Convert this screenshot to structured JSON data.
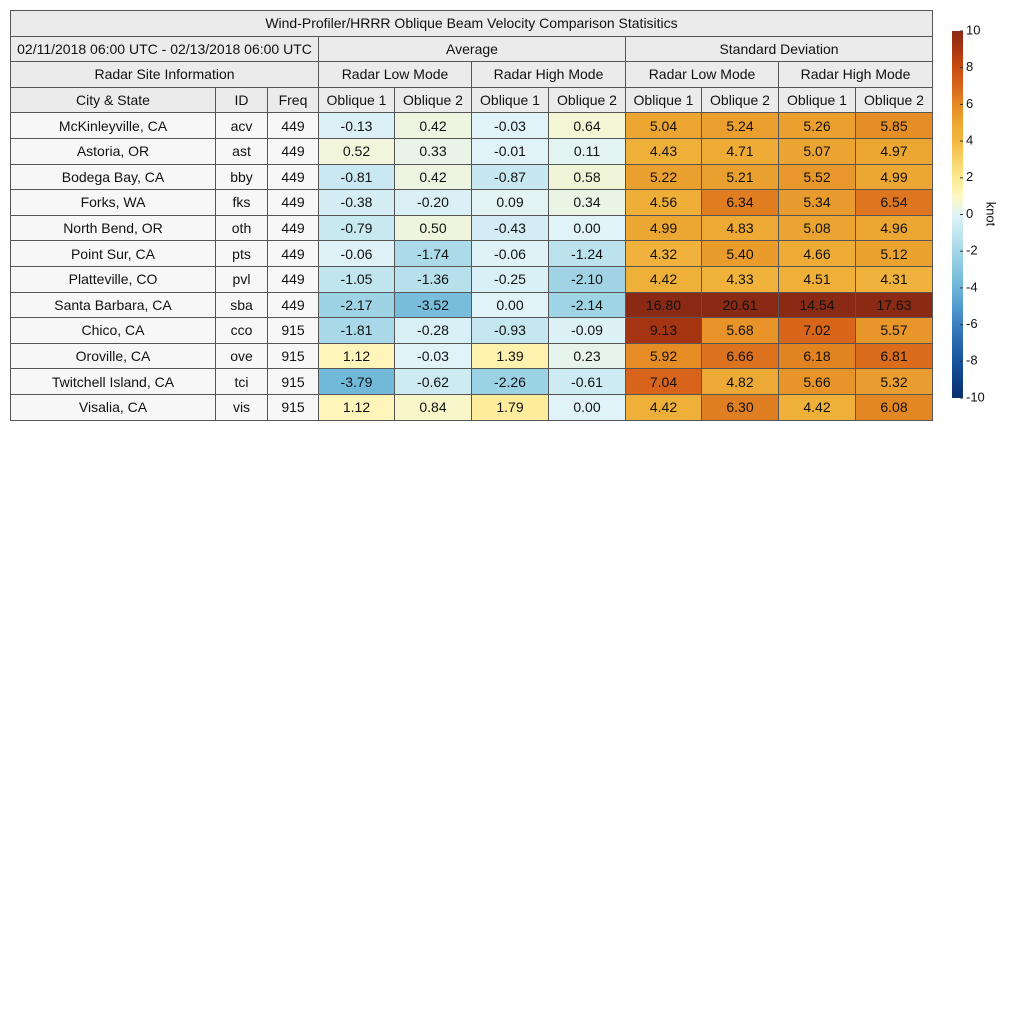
{
  "table": {
    "title": "Wind-Profiler/HRRR Oblique Beam Velocity Comparison Statisitics",
    "period": "02/11/2018 06:00 UTC - 02/13/2018 06:00 UTC",
    "groups": [
      "Average",
      "Standard Deviation"
    ],
    "site_info": "Radar Site Information",
    "modes": [
      "Radar Low Mode",
      "Radar High Mode",
      "Radar Low Mode",
      "Radar High Mode"
    ],
    "columns": [
      "City & State",
      "ID",
      "Freq",
      "Oblique 1",
      "Oblique 2",
      "Oblique 1",
      "Oblique 2",
      "Oblique 1",
      "Oblique 2",
      "Oblique 1",
      "Oblique 2"
    ],
    "rows": [
      [
        "McKinleyville, CA",
        "acv",
        "449",
        "-0.13",
        "0.42",
        "-0.03",
        "0.64",
        "5.04",
        "5.24",
        "5.26",
        "5.85"
      ],
      [
        "Astoria, OR",
        "ast",
        "449",
        "0.52",
        "0.33",
        "-0.01",
        "0.11",
        "4.43",
        "4.71",
        "5.07",
        "4.97"
      ],
      [
        "Bodega Bay, CA",
        "bby",
        "449",
        "-0.81",
        "0.42",
        "-0.87",
        "0.58",
        "5.22",
        "5.21",
        "5.52",
        "4.99"
      ],
      [
        "Forks, WA",
        "fks",
        "449",
        "-0.38",
        "-0.20",
        "0.09",
        "0.34",
        "4.56",
        "6.34",
        "5.34",
        "6.54"
      ],
      [
        "North Bend, OR",
        "oth",
        "449",
        "-0.79",
        "0.50",
        "-0.43",
        "0.00",
        "4.99",
        "4.83",
        "5.08",
        "4.96"
      ],
      [
        "Point Sur, CA",
        "pts",
        "449",
        "-0.06",
        "-1.74",
        "-0.06",
        "-1.24",
        "4.32",
        "5.40",
        "4.66",
        "5.12"
      ],
      [
        "Platteville, CO",
        "pvl",
        "449",
        "-1.05",
        "-1.36",
        "-0.25",
        "-2.10",
        "4.42",
        "4.33",
        "4.51",
        "4.31"
      ],
      [
        "Santa Barbara, CA",
        "sba",
        "449",
        "-2.17",
        "-3.52",
        "0.00",
        "-2.14",
        "16.80",
        "20.61",
        "14.54",
        "17.63"
      ],
      [
        "Chico, CA",
        "cco",
        "915",
        "-1.81",
        "-0.28",
        "-0.93",
        "-0.09",
        "9.13",
        "5.68",
        "7.02",
        "5.57"
      ],
      [
        "Oroville, CA",
        "ove",
        "915",
        "1.12",
        "-0.03",
        "1.39",
        "0.23",
        "5.92",
        "6.66",
        "6.18",
        "6.81"
      ],
      [
        "Twitchell Island, CA",
        "tci",
        "915",
        "-3.79",
        "-0.62",
        "-2.26",
        "-0.61",
        "7.04",
        "4.82",
        "5.66",
        "5.32"
      ],
      [
        "Visalia, CA",
        "vis",
        "915",
        "1.12",
        "0.84",
        "1.79",
        "0.00",
        "4.42",
        "6.30",
        "4.42",
        "6.08"
      ]
    ]
  },
  "colorbar": {
    "label": "knot",
    "range": [
      -10,
      10
    ],
    "ticks": [
      10,
      8,
      6,
      4,
      2,
      0,
      -2,
      -4,
      -6,
      -8,
      -10
    ],
    "colors": [
      "#08306b",
      "#0d3f85",
      "#17539c",
      "#2767ae",
      "#3a7fc0",
      "#529ccd",
      "#6cb5d8",
      "#86c6df",
      "#a3d6e6",
      "#c3e6ef",
      "#e0f3f8",
      "#fef7c0",
      "#fde992",
      "#f8d266",
      "#f2b840",
      "#eca632",
      "#e48a24",
      "#d8651a",
      "#c84c12",
      "#a93512",
      "#8a2a14"
    ]
  }
}
